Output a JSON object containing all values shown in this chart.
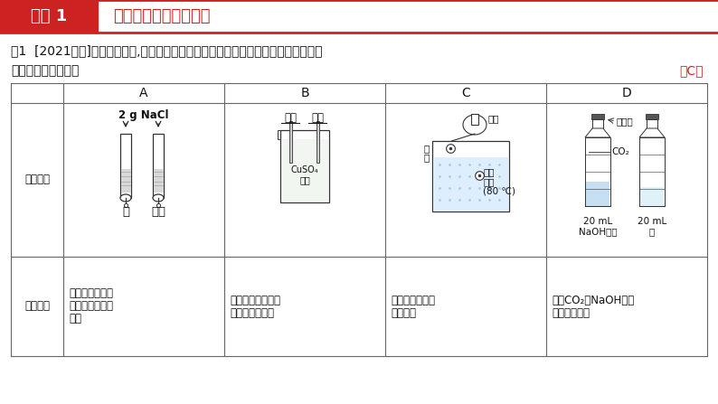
{
  "bg_color": "#ffffff",
  "header_left_bg": "#cc2222",
  "header_left_text": "类型 1",
  "header_left_text_color": "#ffffff",
  "header_right_text": "应用控制变量法的实验",
  "header_right_text_color": "#cc2222",
  "header_border_color": "#cc2222",
  "question_line1": "例1  [2021预测]设计对比实验,控制变量是学习化学的重要方法。下列对比实验不能达",
  "question_line2": "到相应实验目的的是",
  "answer": "（C）",
  "table_headers": [
    "",
    "A",
    "B",
    "C",
    "D"
  ],
  "row1_label": "实验设计",
  "row2_label": "实验目的",
  "col_A_purpose_lines": [
    "探究同种物质在",
    "不同溶剂中的溶",
    "解性"
  ],
  "col_B_purpose_lines": [
    "比较铁、铜、银的",
    "金属活动性强弱"
  ],
  "col_C_purpose_lines": [
    "探究物质燃烧的",
    "三个条件"
  ],
  "col_D_purpose_lines": [
    "探究CO₂与NaOH溶液",
    "能否发生反应"
  ],
  "col_A_nacl": "2 g NaCl",
  "col_A_water": "水",
  "col_A_gasoline": "汽油",
  "col_B_tieshu": "铁丝",
  "col_B_yinshu": "银丝",
  "col_B_cuso4_1": "CuSO₄",
  "col_B_cuso4_2": "溶液",
  "col_C_qiqiu": "气球",
  "col_C_bai": "白",
  "col_C_lin1": "磷",
  "col_C_honglin": "红磷",
  "col_C_reshui": "热水",
  "col_C_temp": "(80 ℃)",
  "col_D_suliaoping": "塑料瓶",
  "col_D_co2": "CO₂",
  "col_D_naoh_ml": "20 mL",
  "col_D_naoh_sol": "NaOH溶液",
  "col_D_water_ml": "20 mL",
  "col_D_water": "水",
  "border_color": "#666666",
  "text_color": "#111111",
  "answer_color": "#cc2222"
}
